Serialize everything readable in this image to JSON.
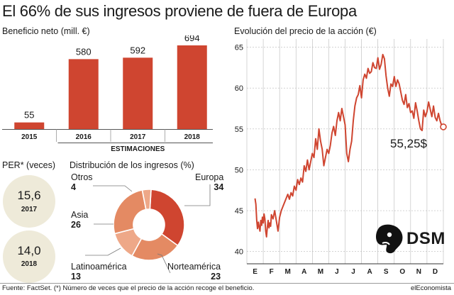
{
  "title": "El 66% de sus ingresos proviene de fuera de Europa",
  "colors": {
    "accent": "#cf4530",
    "pie_light": "#eea888",
    "pie_mid": "#e48a63",
    "per_bg": "#eeead9",
    "grid": "#b0b0b0"
  },
  "footer": {
    "source": "Fuente: FactSet. (*) Número de veces que el precio de la acción recoge el beneficio.",
    "brand": "elEconomista"
  },
  "logo": {
    "text": "DSM",
    "icon": "dsm-lion-icon"
  },
  "per": {
    "title": "PER* (veces)",
    "items": [
      {
        "value": "15,6",
        "year": "2017"
      },
      {
        "value": "14,0",
        "year": "2018"
      }
    ]
  },
  "chart_data": [
    {
      "type": "bar",
      "title": "Beneficio neto (mill. €)",
      "categories": [
        "2015",
        "2016",
        "2017",
        "2018"
      ],
      "values": [
        55,
        580,
        592,
        694
      ],
      "data_labels": [
        "55",
        "580",
        "592",
        "694"
      ],
      "group_label": "ESTIMACIONES",
      "group_categories": [
        "2016",
        "2017",
        "2018"
      ]
    },
    {
      "type": "pie",
      "title": "Distribución de los ingresos (%)",
      "donut": true,
      "slices": [
        {
          "label": "Europa",
          "value": 34,
          "value_label": "34",
          "color": "#cf4530"
        },
        {
          "label": "Norteamérica",
          "value": 23,
          "value_label": "23",
          "color": "#e48a63"
        },
        {
          "label": "Latinoamérica",
          "value": 13,
          "value_label": "13",
          "color": "#eea888"
        },
        {
          "label": "Asia",
          "value": 26,
          "value_label": "26",
          "color": "#e48a63"
        },
        {
          "label": "Otros",
          "value": 4,
          "value_label": "4",
          "color": "#eea888"
        }
      ]
    },
    {
      "type": "line",
      "title": "Evolución del precio de la acción (€)",
      "x_categories": [
        "E",
        "F",
        "M",
        "A",
        "M",
        "J",
        "J",
        "A",
        "S",
        "O",
        "N",
        "D"
      ],
      "yticks": [
        40,
        45,
        50,
        55,
        60,
        65
      ],
      "ylim": [
        38.5,
        66
      ],
      "grid": true,
      "last_label": "55,25$",
      "x": [
        0.0,
        0.05,
        0.1,
        0.15,
        0.2,
        0.25,
        0.3,
        0.35,
        0.4,
        0.45,
        0.5,
        0.55,
        0.6,
        0.65,
        0.7,
        0.75,
        0.8,
        0.85,
        0.9,
        0.95,
        1.0,
        1.1,
        1.2,
        1.3,
        1.4,
        1.5,
        1.6,
        1.7,
        1.8,
        1.9,
        2.0,
        2.1,
        2.2,
        2.3,
        2.4,
        2.5,
        2.6,
        2.7,
        2.8,
        2.9,
        3.0,
        3.1,
        3.2,
        3.3,
        3.4,
        3.5,
        3.6,
        3.7,
        3.8,
        3.9,
        4.0,
        4.1,
        4.2,
        4.3,
        4.4,
        4.5,
        4.6,
        4.7,
        4.8,
        4.9,
        5.0,
        5.1,
        5.2,
        5.3,
        5.4,
        5.5,
        5.6,
        5.7,
        5.8,
        5.9,
        6.0,
        6.1,
        6.2,
        6.3,
        6.4,
        6.5,
        6.6,
        6.7,
        6.8,
        6.9,
        7.0,
        7.1,
        7.2,
        7.3,
        7.4,
        7.5,
        7.6,
        7.7,
        7.8,
        7.9,
        8.0,
        8.1,
        8.2,
        8.3,
        8.4,
        8.5,
        8.6,
        8.7,
        8.8,
        8.9,
        9.0,
        9.1,
        9.2,
        9.3,
        9.4,
        9.5,
        9.6,
        9.7,
        9.8,
        9.9,
        10.0,
        10.1,
        10.2,
        10.3,
        10.4,
        10.5,
        10.6,
        10.7,
        10.8,
        10.9,
        11.0,
        11.1,
        11.2,
        11.3,
        11.4,
        11.5
      ],
      "y": [
        46.5,
        45.8,
        43.8,
        42.8,
        43.6,
        43.0,
        42.5,
        43.8,
        43.2,
        44.2,
        43.5,
        44.6,
        44.0,
        42.5,
        41.8,
        43.0,
        43.8,
        42.9,
        43.5,
        43.1,
        44.5,
        44.0,
        45.0,
        43.8,
        42.5,
        44.2,
        45.0,
        45.5,
        46.0,
        46.5,
        47.0,
        46.4,
        47.2,
        46.8,
        48.0,
        47.5,
        48.8,
        48.2,
        49.0,
        48.5,
        50.5,
        49.8,
        51.2,
        50.0,
        51.0,
        52.0,
        51.5,
        53.8,
        52.5,
        55.0,
        53.5,
        52.5,
        50.5,
        51.5,
        52.5,
        52.0,
        53.0,
        54.5,
        55.3,
        54.2,
        56.0,
        57.0,
        56.0,
        57.5,
        56.5,
        55.5,
        52.0,
        51.0,
        52.5,
        53.5,
        56.0,
        57.8,
        58.8,
        59.2,
        60.3,
        58.8,
        61.0,
        61.7,
        61.2,
        62.4,
        61.8,
        62.0,
        63.1,
        62.5,
        62.4,
        63.7,
        62.3,
        62.9,
        64.1,
        63.6,
        61.5,
        60.0,
        59.0,
        60.5,
        60.2,
        61.4,
        60.2,
        61.0,
        60.5,
        59.5,
        58.5,
        58.0,
        59.2,
        57.6,
        58.1,
        57.0,
        57.2,
        56.3,
        58.2,
        57.2,
        56.0,
        55.0,
        54.8,
        57.3,
        56.5,
        57.1,
        58.3,
        57.4,
        56.5,
        57.8,
        56.4,
        56.0,
        56.9,
        56.0,
        55.4,
        55.25
      ]
    }
  ]
}
